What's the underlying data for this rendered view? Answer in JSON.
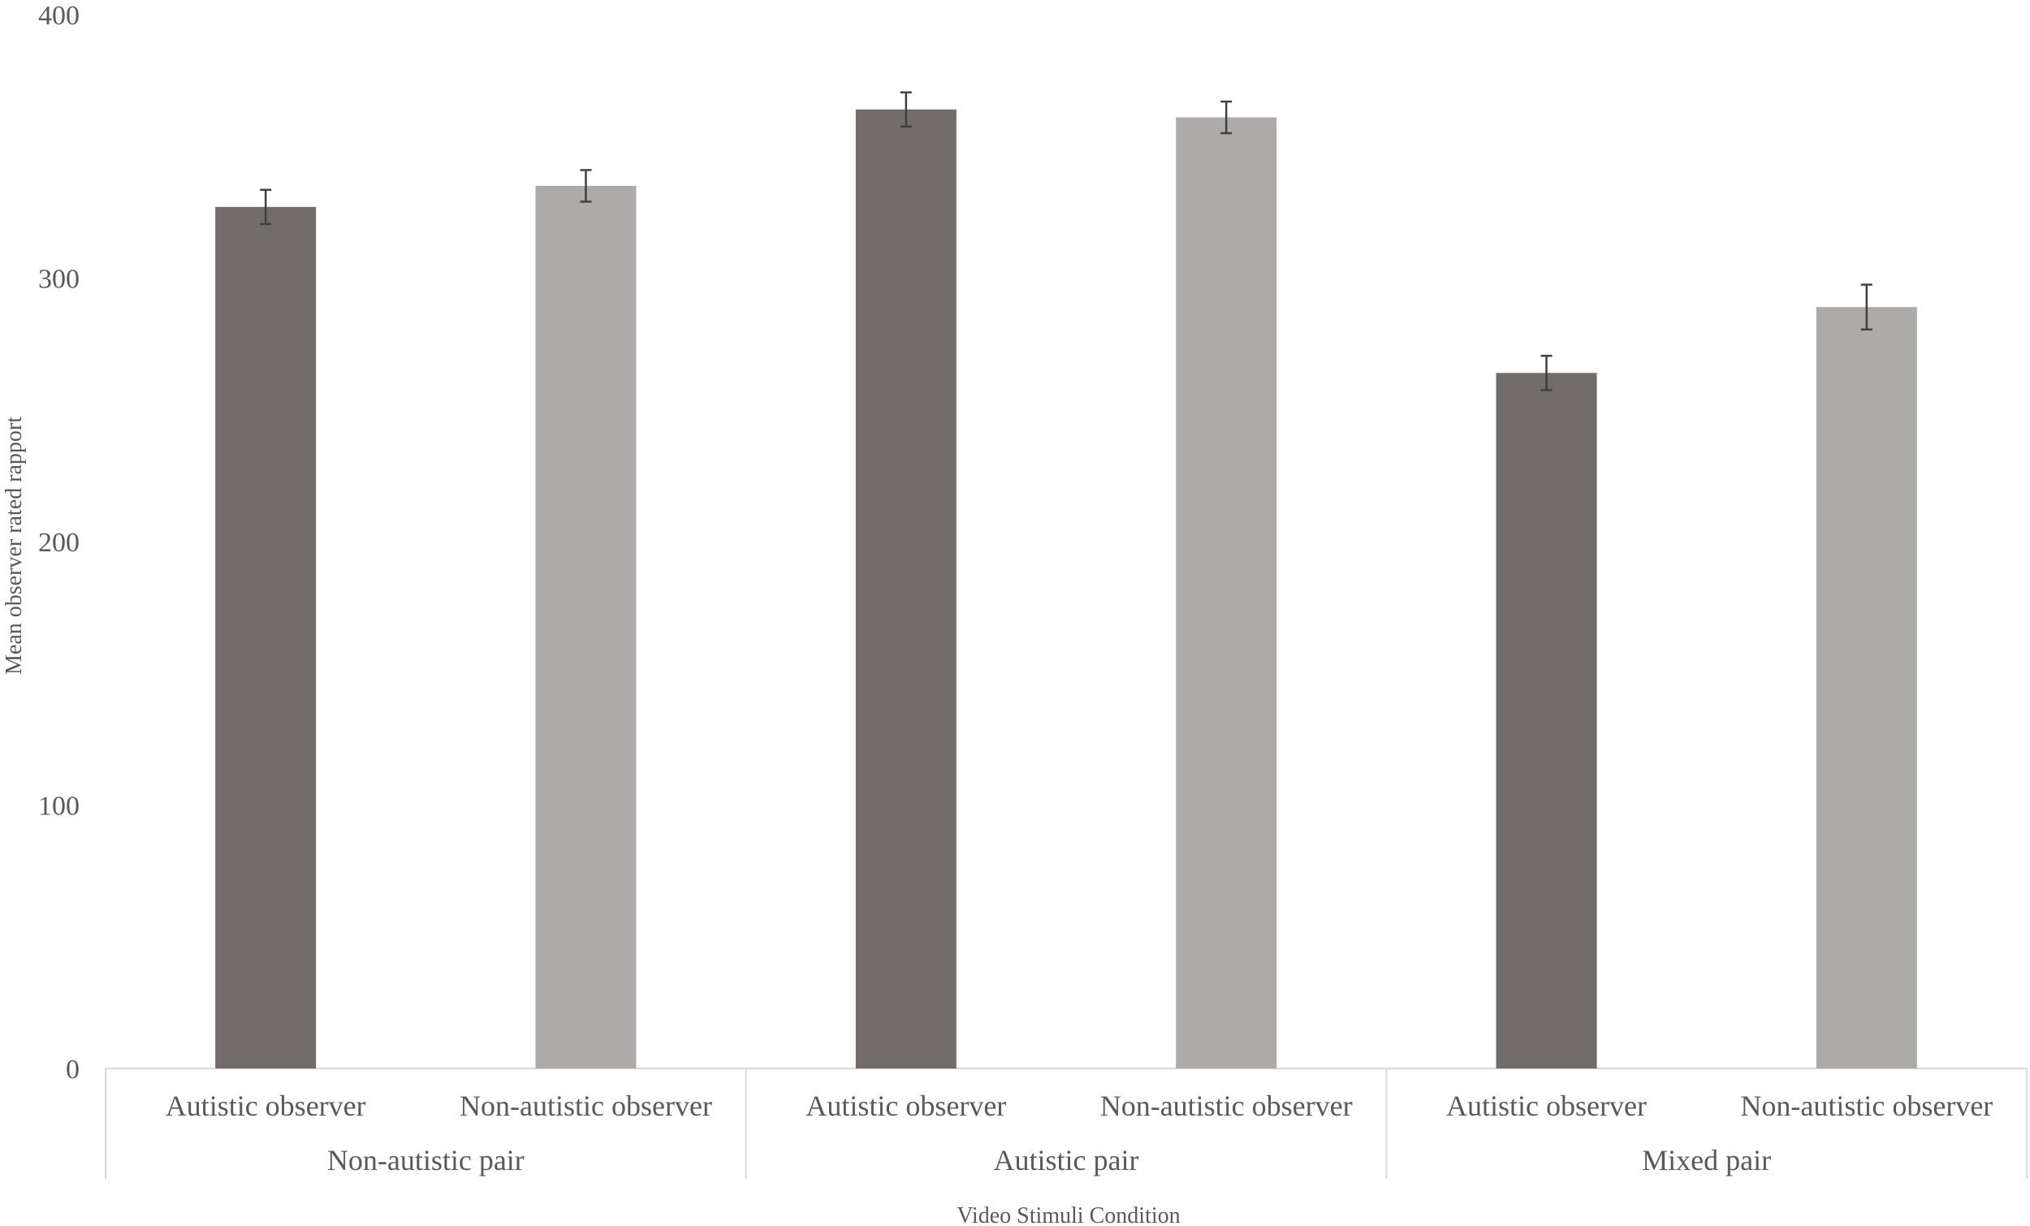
{
  "chart_data": {
    "type": "bar",
    "title": "",
    "xlabel": "Video Stimuli Condition",
    "ylabel": "Mean observer rated rapport",
    "ylim": [
      0,
      400
    ],
    "yticks": [
      0,
      100,
      200,
      300,
      400
    ],
    "grid": false,
    "groups": [
      "Non-autistic pair",
      "Autistic pair",
      "Mixed pair"
    ],
    "categories": [
      "Autistic observer",
      "Non-autistic observer",
      "Autistic observer",
      "Non-autistic observer",
      "Autistic observer",
      "Non-autistic observer"
    ],
    "values": [
      327,
      335,
      364,
      361,
      264,
      289
    ],
    "errors": [
      6.5,
      6,
      6.5,
      6,
      6.5,
      8.5
    ],
    "colors": {
      "Autistic observer": "#726d6b",
      "Non-autistic observer": "#aeaaa9"
    },
    "axis_color": "#d9d9d9"
  }
}
